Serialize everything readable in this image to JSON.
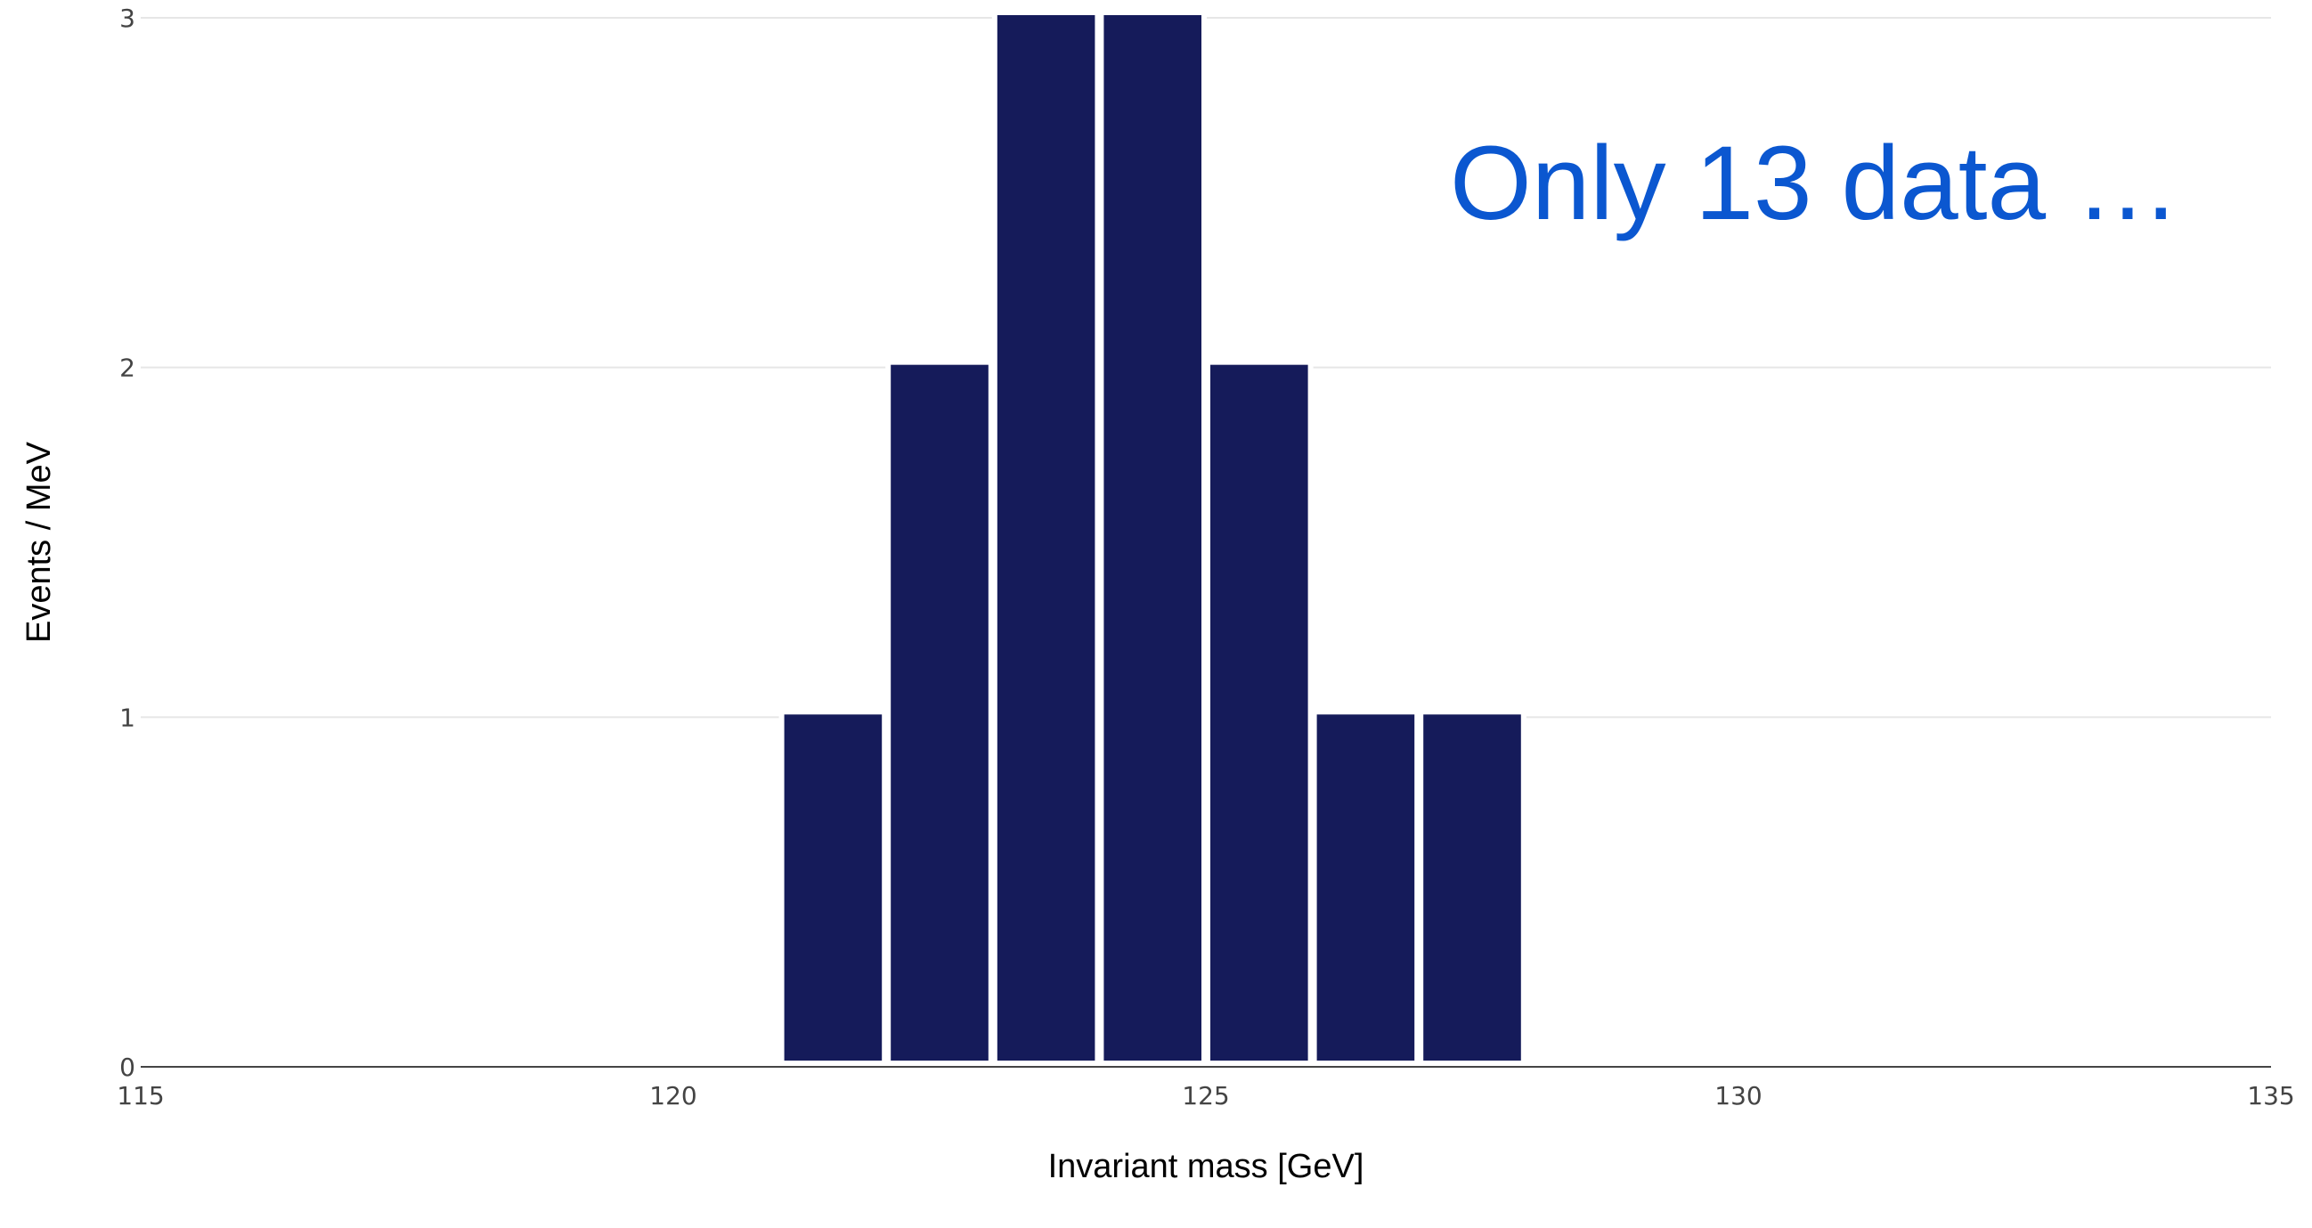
{
  "chart_data": {
    "type": "bar",
    "title": "",
    "xlabel": "Invariant mass [GeV]",
    "ylabel": "Events / MeV",
    "xlim": [
      115,
      135
    ],
    "ylim": [
      0,
      3
    ],
    "x_ticks": [
      "115",
      "120",
      "125",
      "130",
      "135"
    ],
    "y_ticks": [
      "0",
      "1",
      "2",
      "3"
    ],
    "bin_width": 1,
    "bins": [
      {
        "x_start": 121,
        "x_end": 122,
        "value": 1
      },
      {
        "x_start": 122,
        "x_end": 123,
        "value": 2
      },
      {
        "x_start": 123,
        "x_end": 124,
        "value": 3
      },
      {
        "x_start": 124,
        "x_end": 125,
        "value": 3
      },
      {
        "x_start": 125,
        "x_end": 126,
        "value": 2
      },
      {
        "x_start": 126,
        "x_end": 127,
        "value": 1
      },
      {
        "x_start": 127,
        "x_end": 128,
        "value": 1
      }
    ],
    "bar_color": "#151b5a",
    "grid": true,
    "legend": "none",
    "annotation": "Only 13 data …",
    "annotation_color": "#0b57d0"
  }
}
